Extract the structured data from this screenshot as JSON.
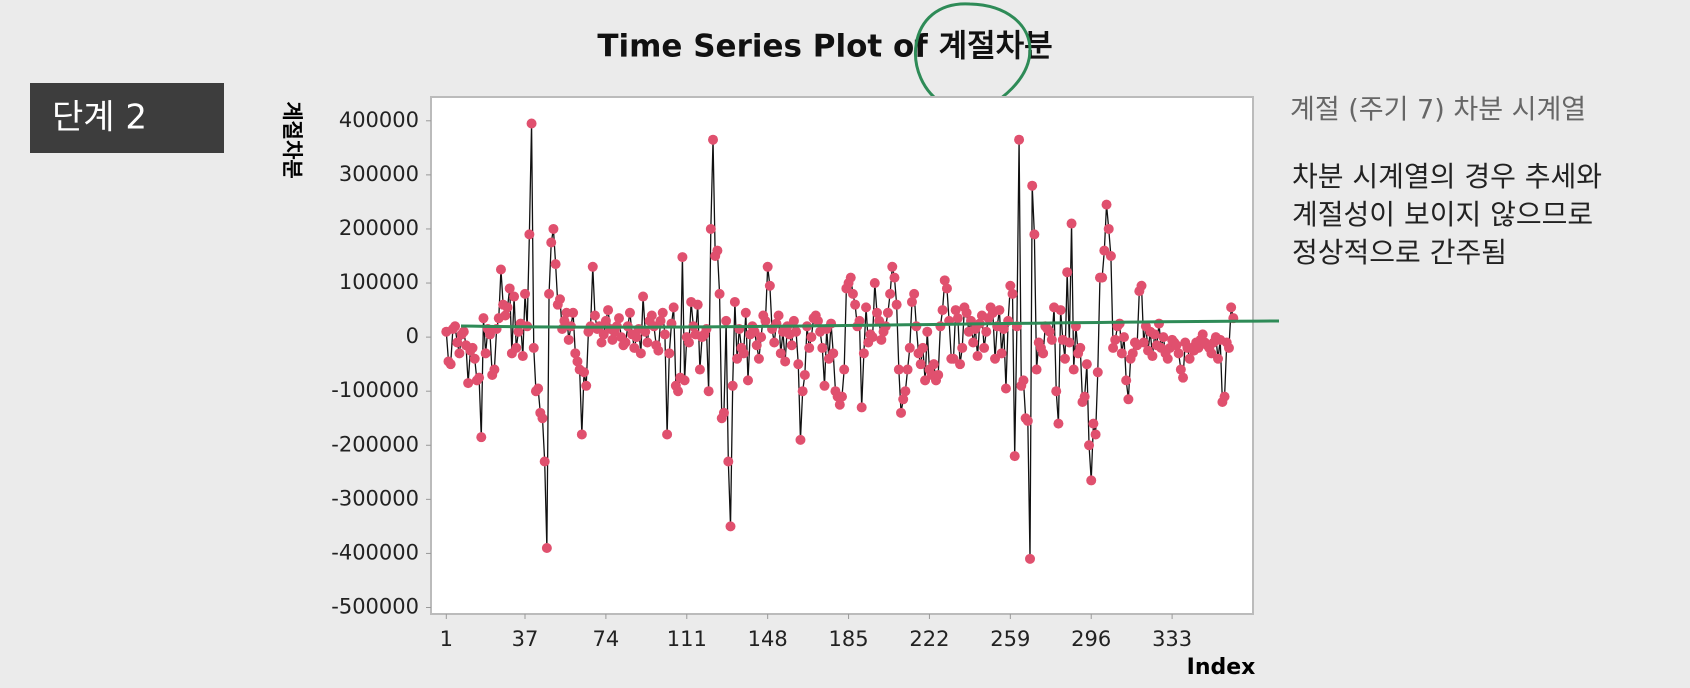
{
  "slide": {
    "step": "단계 2",
    "note_title": "계절 (주기 7) 차분 시계열",
    "note_lines": [
      "차분 시계열의 경우 추세와",
      "계절성이 보이지 않으므로",
      "정상적으로 간주됨"
    ]
  },
  "chart_data": {
    "type": "line",
    "title": "Time Series Plot of 계절차분",
    "y_label": "계절차분",
    "x_label": "Index",
    "color": "#e0506e",
    "line_color": "#111111",
    "xlim": [
      -6,
      370
    ],
    "xticks": [
      1,
      37,
      74,
      111,
      148,
      185,
      222,
      259,
      296,
      333
    ],
    "ylim": [
      -512000,
      444000
    ],
    "yticks": [
      -500000,
      -400000,
      -300000,
      -200000,
      -100000,
      0,
      100000,
      200000,
      300000,
      400000
    ],
    "values": [
      10000,
      -45000,
      -50000,
      15000,
      20000,
      -10000,
      -30000,
      5000,
      10000,
      -15000,
      -85000,
      -25000,
      -20000,
      -40000,
      -80000,
      -75000,
      -185000,
      35000,
      -30000,
      15000,
      5000,
      -70000,
      -60000,
      15000,
      35000,
      125000,
      60000,
      40000,
      55000,
      90000,
      -30000,
      75000,
      -20000,
      10000,
      25000,
      -35000,
      80000,
      20000,
      190000,
      395000,
      -20000,
      -100000,
      -95000,
      -140000,
      -150000,
      -230000,
      -390000,
      80000,
      175000,
      200000,
      135000,
      60000,
      70000,
      15000,
      30000,
      45000,
      -5000,
      20000,
      45000,
      -30000,
      -45000,
      -60000,
      -180000,
      -65000,
      -90000,
      10000,
      20000,
      130000,
      40000,
      15000,
      20000,
      -10000,
      5000,
      30000,
      50000,
      15000,
      -5000,
      10000,
      20000,
      35000,
      0,
      -15000,
      -10000,
      20000,
      45000,
      5000,
      -20000,
      0,
      15000,
      -30000,
      75000,
      10000,
      -10000,
      30000,
      40000,
      20000,
      -15000,
      -25000,
      30000,
      45000,
      5000,
      -180000,
      -30000,
      25000,
      55000,
      -90000,
      -100000,
      -75000,
      148000,
      -80000,
      0,
      -10000,
      65000,
      20000,
      5000,
      60000,
      -60000,
      0,
      5000,
      15000,
      -100000,
      200000,
      365000,
      150000,
      160000,
      80000,
      -150000,
      -140000,
      30000,
      -230000,
      -350000,
      -90000,
      65000,
      -40000,
      15000,
      -20000,
      -30000,
      45000,
      -80000,
      5000,
      20000,
      10000,
      -15000,
      -40000,
      0,
      40000,
      30000,
      130000,
      95000,
      15000,
      -10000,
      25000,
      40000,
      -30000,
      10000,
      -45000,
      20000,
      5000,
      -15000,
      30000,
      10000,
      -50000,
      -190000,
      -100000,
      -70000,
      20000,
      -20000,
      0,
      35000,
      40000,
      30000,
      10000,
      -20000,
      -90000,
      15000,
      -40000,
      25000,
      -30000,
      -100000,
      -110000,
      -125000,
      -110000,
      -60000,
      90000,
      100000,
      110000,
      80000,
      60000,
      20000,
      30000,
      -130000,
      -30000,
      55000,
      -10000,
      5000,
      0,
      100000,
      45000,
      30000,
      -5000,
      10000,
      20000,
      45000,
      80000,
      130000,
      110000,
      60000,
      -60000,
      -140000,
      -115000,
      -100000,
      -60000,
      -20000,
      65000,
      80000,
      20000,
      -30000,
      -50000,
      -20000,
      -80000,
      10000,
      -60000,
      -70000,
      -50000,
      -80000,
      -70000,
      20000,
      50000,
      105000,
      90000,
      30000,
      -40000,
      -40000,
      50000,
      35000,
      -50000,
      -20000,
      55000,
      45000,
      10000,
      30000,
      -10000,
      15000,
      -35000,
      25000,
      40000,
      -20000,
      10000,
      35000,
      55000,
      45000,
      -40000,
      20000,
      50000,
      -30000,
      15000,
      -95000,
      30000,
      95000,
      80000,
      -220000,
      20000,
      365000,
      -90000,
      -80000,
      -150000,
      -155000,
      -410000,
      280000,
      190000,
      -60000,
      -10000,
      -20000,
      -30000,
      20000,
      15000,
      10000,
      -5000,
      55000,
      -100000,
      -160000,
      50000,
      -5000,
      -40000,
      120000,
      -10000,
      210000,
      -60000,
      20000,
      -30000,
      -20000,
      -120000,
      -110000,
      -50000,
      -200000,
      -265000,
      -160000,
      -180000,
      -65000,
      110000,
      110000,
      160000,
      245000,
      200000,
      150000,
      -20000,
      -5000,
      20000,
      25000,
      -30000,
      0,
      -80000,
      -115000,
      -40000,
      -30000,
      -10000,
      -15000,
      85000,
      95000,
      -10000,
      20000,
      -25000,
      10000,
      -35000,
      5000,
      -15000,
      25000,
      -20000,
      0,
      -30000,
      -40000,
      -20000,
      -5000,
      -10000,
      -15000,
      -30000,
      -60000,
      -75000,
      -10000,
      -20000,
      -40000,
      -20000,
      -25000,
      -10000,
      -20000,
      -5000,
      5000,
      -10000,
      -15000,
      -20000,
      -30000,
      -10000,
      0,
      -40000,
      -5000,
      -120000,
      -110000,
      -10000,
      -20000,
      55000,
      35000
    ]
  }
}
